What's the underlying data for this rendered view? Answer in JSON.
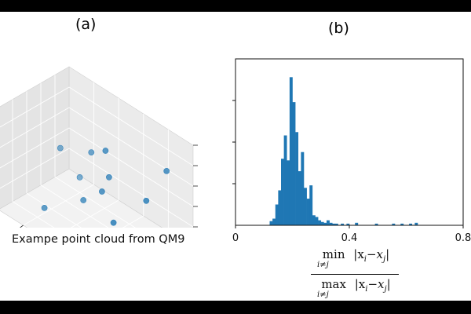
{
  "panels": {
    "a_label": "(a)",
    "b_label": "(b)",
    "a_caption": "Exampe point cloud from QM9"
  },
  "formula": {
    "num_op": "min",
    "num_sub": "i≠j",
    "num_expr": "|x",
    "num_i": "i",
    "num_minus": "−x",
    "num_j": "j",
    "num_close": "|",
    "den_op": "max",
    "den_sub": "i≠j",
    "den_expr": "|x",
    "den_i": "i",
    "den_minus": "−x",
    "den_j": "j",
    "den_close": "|"
  },
  "colors": {
    "point": "#1f77b4",
    "bar": "#1f77b4"
  },
  "chart_data": [
    {
      "type": "scatter3d",
      "panel": "(a)",
      "title": "",
      "points": [
        {
          "x": 0.55,
          "y": 0.45,
          "z": 0.78
        },
        {
          "x": 0.1,
          "y": 0.3,
          "z": 0.4
        },
        {
          "x": 0.35,
          "y": 0.3,
          "z": 0.55
        },
        {
          "x": 0.55,
          "y": 0.4,
          "z": 0.5
        },
        {
          "x": 0.55,
          "y": 0.5,
          "z": 0.4
        },
        {
          "x": 0.9,
          "y": 0.2,
          "z": 0.75
        },
        {
          "x": 0.85,
          "y": 0.4,
          "z": 0.5
        },
        {
          "x": 0.2,
          "y": 0.2,
          "z": 0.15
        },
        {
          "x": 0.4,
          "y": 0.5,
          "z": 0.2
        },
        {
          "x": 0.7,
          "y": 0.6,
          "z": 0.25
        },
        {
          "x": 0.2,
          "y": 0.7,
          "z": 0.05
        },
        {
          "x": 0.85,
          "y": 0.8,
          "z": 0.1
        }
      ]
    },
    {
      "type": "bar",
      "panel": "(b)",
      "title": "",
      "xlim": [
        0,
        0.8
      ],
      "xticks": [
        "0",
        "0.4",
        "0.8"
      ],
      "yticks_labeled": false,
      "bins": [
        {
          "x": 0.12,
          "h": 5
        },
        {
          "x": 0.13,
          "h": 8
        },
        {
          "x": 0.14,
          "h": 25
        },
        {
          "x": 0.15,
          "h": 42
        },
        {
          "x": 0.16,
          "h": 80
        },
        {
          "x": 0.17,
          "h": 108
        },
        {
          "x": 0.18,
          "h": 78
        },
        {
          "x": 0.19,
          "h": 178
        },
        {
          "x": 0.2,
          "h": 148
        },
        {
          "x": 0.21,
          "h": 112
        },
        {
          "x": 0.22,
          "h": 65
        },
        {
          "x": 0.23,
          "h": 88
        },
        {
          "x": 0.24,
          "h": 45
        },
        {
          "x": 0.25,
          "h": 32
        },
        {
          "x": 0.26,
          "h": 48
        },
        {
          "x": 0.27,
          "h": 12
        },
        {
          "x": 0.28,
          "h": 10
        },
        {
          "x": 0.29,
          "h": 6
        },
        {
          "x": 0.3,
          "h": 4
        },
        {
          "x": 0.31,
          "h": 3
        },
        {
          "x": 0.32,
          "h": 6
        },
        {
          "x": 0.33,
          "h": 3
        },
        {
          "x": 0.34,
          "h": 2
        },
        {
          "x": 0.35,
          "h": 2
        },
        {
          "x": 0.37,
          "h": 2
        },
        {
          "x": 0.39,
          "h": 2
        },
        {
          "x": 0.42,
          "h": 3
        },
        {
          "x": 0.49,
          "h": 2
        },
        {
          "x": 0.55,
          "h": 2
        },
        {
          "x": 0.58,
          "h": 2
        },
        {
          "x": 0.61,
          "h": 2
        },
        {
          "x": 0.63,
          "h": 3
        }
      ],
      "ylim": [
        0,
        200
      ]
    }
  ]
}
